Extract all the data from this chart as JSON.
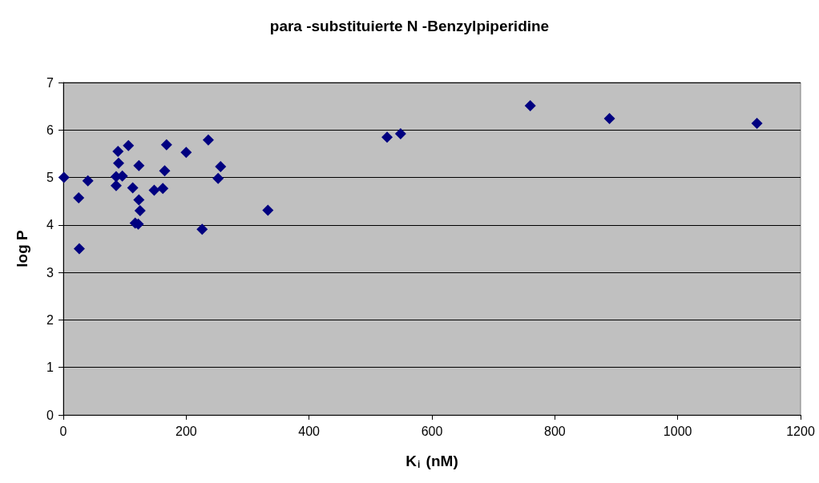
{
  "chart_data": {
    "type": "scatter",
    "title": "para -substituierte N -Benzylpiperidine",
    "xlabel": "K$_{i}$ (nM)",
    "ylabel": "log P",
    "x": [
      1,
      25,
      26,
      40,
      86,
      86,
      89,
      90,
      96,
      106,
      113,
      123,
      123,
      125,
      117,
      122,
      148,
      162,
      165,
      168,
      200,
      226,
      236,
      252,
      256,
      333,
      527,
      549,
      760,
      889,
      1129
    ],
    "series": [
      {
        "color": "#000080",
        "values": [
          5.0,
          4.57,
          3.5,
          4.93,
          4.83,
          5.02,
          5.55,
          5.3,
          5.03,
          5.67,
          4.78,
          5.25,
          4.53,
          4.3,
          4.04,
          4.02,
          4.73,
          4.77,
          5.14,
          5.69,
          5.53,
          3.91,
          5.79,
          4.98,
          5.23,
          4.31,
          5.85,
          5.92,
          6.51,
          6.24,
          6.14
        ]
      }
    ],
    "xlim": [
      0,
      1200
    ],
    "xticks": [
      0,
      200,
      400,
      600,
      800,
      1000,
      1200
    ],
    "ylim": [
      0,
      7
    ],
    "yticks": [
      0,
      1,
      2,
      3,
      4,
      5,
      6,
      7
    ],
    "grid": "y",
    "marker": "diamond"
  }
}
